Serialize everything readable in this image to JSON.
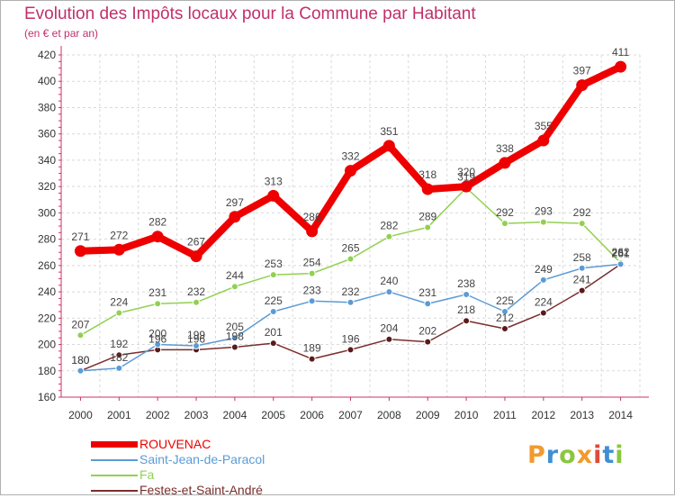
{
  "title": "Evolution des Impôts locaux pour la Commune par Habitant",
  "subtitle": "(en € et par an)",
  "logo": {
    "text": "Proxiti",
    "colors": [
      "#f29a2e",
      "#3f8fd2",
      "#8cc63f",
      "#f29a2e",
      "#e04a3a",
      "#3f8fd2",
      "#8cc63f"
    ]
  },
  "chart_data": {
    "type": "line",
    "x": [
      "2000",
      "2001",
      "2002",
      "2003",
      "2004",
      "2005",
      "2006",
      "2007",
      "2008",
      "2009",
      "2010",
      "2011",
      "2012",
      "2013",
      "2014"
    ],
    "ylim": [
      160,
      420
    ],
    "yticks": [
      160,
      180,
      200,
      220,
      240,
      260,
      280,
      300,
      320,
      340,
      360,
      380,
      400,
      420
    ],
    "grid": true,
    "legend_position": "bottom-left",
    "series": [
      {
        "name": "ROUVENAC",
        "color": "#ee0000",
        "values": [
          271,
          272,
          282,
          267,
          297,
          313,
          286,
          332,
          351,
          318,
          320,
          338,
          355,
          397,
          411
        ]
      },
      {
        "name": "Saint-Jean-de-Paracol",
        "color": "#5b9bd5",
        "values": [
          180,
          182,
          200,
          199,
          205,
          225,
          233,
          232,
          240,
          231,
          238,
          225,
          249,
          258,
          261
        ]
      },
      {
        "name": "Fa",
        "color": "#92d050",
        "values": [
          207,
          224,
          231,
          232,
          244,
          253,
          254,
          265,
          282,
          289,
          319,
          292,
          293,
          292,
          262
        ]
      },
      {
        "name": "Festes-et-Saint-André",
        "color": "#7b2d2d",
        "values": [
          180,
          192,
          196,
          196,
          198,
          201,
          189,
          196,
          204,
          202,
          218,
          212,
          224,
          241,
          261
        ]
      }
    ]
  }
}
